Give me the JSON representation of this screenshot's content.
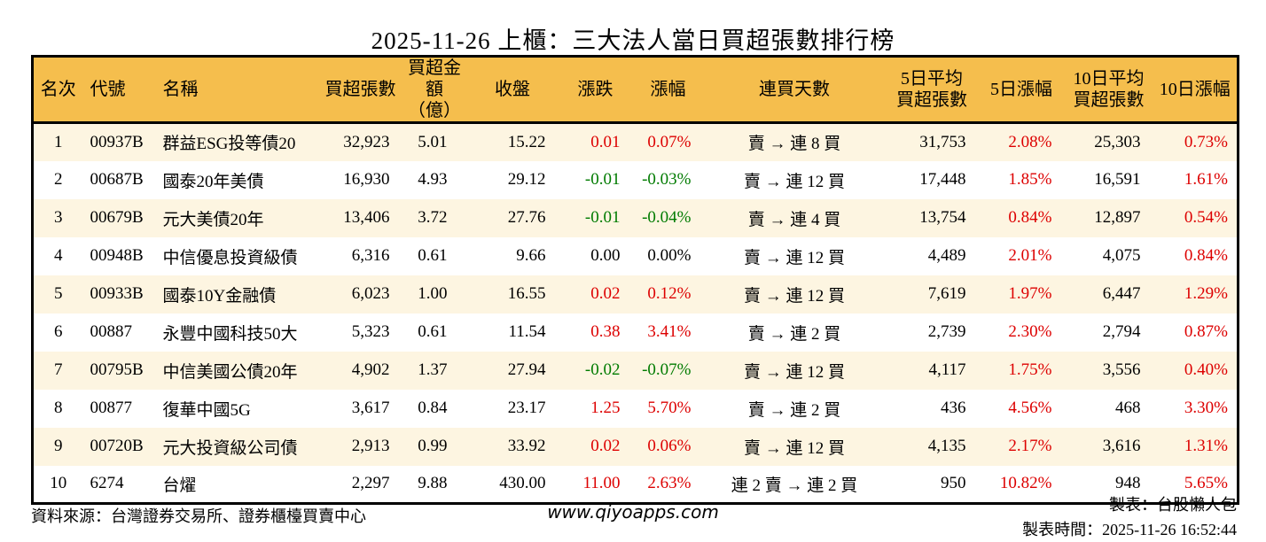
{
  "title": "2025-11-26 上櫃：三大法人當日買超張數排行榜",
  "colors": {
    "header_bg": "#F5BE4D",
    "row_alt_bg": "#FDF5E1",
    "up_red": "#DD0000",
    "down_green": "#007B00"
  },
  "table": {
    "columns": [
      {
        "id": "rank",
        "label": "名次"
      },
      {
        "id": "code",
        "label": "代號"
      },
      {
        "id": "name",
        "label": "名稱"
      },
      {
        "id": "net_buy",
        "label": "買超張數"
      },
      {
        "id": "amount",
        "label": "買超金額\n（億）"
      },
      {
        "id": "close",
        "label": "收盤"
      },
      {
        "id": "change",
        "label": "漲跌"
      },
      {
        "id": "change_pct",
        "label": "漲幅"
      },
      {
        "id": "streak",
        "label": "連買天數"
      },
      {
        "id": "avg5",
        "label": "5日平均\n買超張數"
      },
      {
        "id": "avg5_pct",
        "label": "5日漲幅"
      },
      {
        "id": "avg10",
        "label": "10日平均\n買超張數"
      },
      {
        "id": "avg10_pct",
        "label": "10日漲幅"
      }
    ],
    "rows": [
      {
        "rank": "1",
        "code": "00937B",
        "name": "群益ESG投等債20",
        "net_buy": "32,923",
        "amount": "5.01",
        "close": "15.22",
        "change": "0.01",
        "change_color": "red",
        "change_pct": "0.07%",
        "change_pct_color": "red",
        "streak": "賣 → 連 8 買",
        "avg5": "31,753",
        "avg5_pct": "2.08%",
        "avg5_pct_color": "red",
        "avg10": "25,303",
        "avg10_pct": "0.73%",
        "avg10_pct_color": "red"
      },
      {
        "rank": "2",
        "code": "00687B",
        "name": "國泰20年美債",
        "net_buy": "16,930",
        "amount": "4.93",
        "close": "29.12",
        "change": "-0.01",
        "change_color": "green",
        "change_pct": "-0.03%",
        "change_pct_color": "green",
        "streak": "賣 → 連 12 買",
        "avg5": "17,448",
        "avg5_pct": "1.85%",
        "avg5_pct_color": "red",
        "avg10": "16,591",
        "avg10_pct": "1.61%",
        "avg10_pct_color": "red"
      },
      {
        "rank": "3",
        "code": "00679B",
        "name": "元大美債20年",
        "net_buy": "13,406",
        "amount": "3.72",
        "close": "27.76",
        "change": "-0.01",
        "change_color": "green",
        "change_pct": "-0.04%",
        "change_pct_color": "green",
        "streak": "賣 → 連 4 買",
        "avg5": "13,754",
        "avg5_pct": "0.84%",
        "avg5_pct_color": "red",
        "avg10": "12,897",
        "avg10_pct": "0.54%",
        "avg10_pct_color": "red"
      },
      {
        "rank": "4",
        "code": "00948B",
        "name": "中信優息投資級債",
        "net_buy": "6,316",
        "amount": "0.61",
        "close": "9.66",
        "change": "0.00",
        "change_color": "black",
        "change_pct": "0.00%",
        "change_pct_color": "black",
        "streak": "賣 → 連 12 買",
        "avg5": "4,489",
        "avg5_pct": "2.01%",
        "avg5_pct_color": "red",
        "avg10": "4,075",
        "avg10_pct": "0.84%",
        "avg10_pct_color": "red"
      },
      {
        "rank": "5",
        "code": "00933B",
        "name": "國泰10Y金融債",
        "net_buy": "6,023",
        "amount": "1.00",
        "close": "16.55",
        "change": "0.02",
        "change_color": "red",
        "change_pct": "0.12%",
        "change_pct_color": "red",
        "streak": "賣 → 連 12 買",
        "avg5": "7,619",
        "avg5_pct": "1.97%",
        "avg5_pct_color": "red",
        "avg10": "6,447",
        "avg10_pct": "1.29%",
        "avg10_pct_color": "red"
      },
      {
        "rank": "6",
        "code": "00887",
        "name": "永豐中國科技50大",
        "net_buy": "5,323",
        "amount": "0.61",
        "close": "11.54",
        "change": "0.38",
        "change_color": "red",
        "change_pct": "3.41%",
        "change_pct_color": "red",
        "streak": "賣 → 連 2 買",
        "avg5": "2,739",
        "avg5_pct": "2.30%",
        "avg5_pct_color": "red",
        "avg10": "2,794",
        "avg10_pct": "0.87%",
        "avg10_pct_color": "red"
      },
      {
        "rank": "7",
        "code": "00795B",
        "name": "中信美國公債20年",
        "net_buy": "4,902",
        "amount": "1.37",
        "close": "27.94",
        "change": "-0.02",
        "change_color": "green",
        "change_pct": "-0.07%",
        "change_pct_color": "green",
        "streak": "賣 → 連 12 買",
        "avg5": "4,117",
        "avg5_pct": "1.75%",
        "avg5_pct_color": "red",
        "avg10": "3,556",
        "avg10_pct": "0.40%",
        "avg10_pct_color": "red"
      },
      {
        "rank": "8",
        "code": "00877",
        "name": "復華中國5G",
        "net_buy": "3,617",
        "amount": "0.84",
        "close": "23.17",
        "change": "1.25",
        "change_color": "red",
        "change_pct": "5.70%",
        "change_pct_color": "red",
        "streak": "賣 → 連 2 買",
        "avg5": "436",
        "avg5_pct": "4.56%",
        "avg5_pct_color": "red",
        "avg10": "468",
        "avg10_pct": "3.30%",
        "avg10_pct_color": "red"
      },
      {
        "rank": "9",
        "code": "00720B",
        "name": "元大投資級公司債",
        "net_buy": "2,913",
        "amount": "0.99",
        "close": "33.92",
        "change": "0.02",
        "change_color": "red",
        "change_pct": "0.06%",
        "change_pct_color": "red",
        "streak": "賣 → 連 12 買",
        "avg5": "4,135",
        "avg5_pct": "2.17%",
        "avg5_pct_color": "red",
        "avg10": "3,616",
        "avg10_pct": "1.31%",
        "avg10_pct_color": "red"
      },
      {
        "rank": "10",
        "code": "6274",
        "name": "台燿",
        "net_buy": "2,297",
        "amount": "9.88",
        "close": "430.00",
        "change": "11.00",
        "change_color": "red",
        "change_pct": "2.63%",
        "change_pct_color": "red",
        "streak": "連 2 賣 → 連 2 買",
        "avg5": "950",
        "avg5_pct": "10.82%",
        "avg5_pct_color": "red",
        "avg10": "948",
        "avg10_pct": "5.65%",
        "avg10_pct_color": "red"
      }
    ]
  },
  "footer": {
    "source": "資料來源：台灣證券交易所、證券櫃檯買賣中心",
    "site": "www.qiyoapps.com",
    "maker": "製表：台股懶人包",
    "made_time": "製表時間：2025-11-26 16:52:44"
  }
}
